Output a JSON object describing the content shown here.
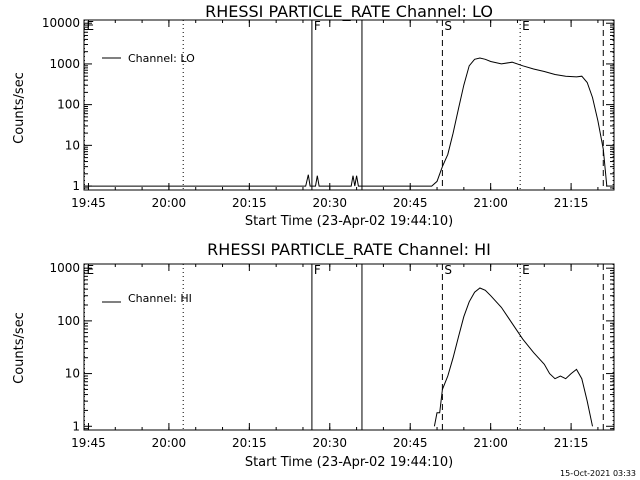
{
  "chart_data": [
    {
      "type": "line",
      "title": "RHESSI PARTICLE_RATE Channel: LO",
      "xlabel": "Start Time (23-Apr-02 19:44:10)",
      "ylabel": "Counts/sec",
      "yscale": "log",
      "xlim": [
        "19:44:10",
        "21:23:00"
      ],
      "ylim": [
        0.8,
        12000
      ],
      "xticks": [
        "19:45",
        "20:00",
        "20:15",
        "20:30",
        "20:45",
        "21:00",
        "21:15"
      ],
      "yticks": [
        "1",
        "10",
        "100",
        "1000",
        "10000"
      ],
      "legend": {
        "position": "top-left",
        "label": "Channel: LO"
      },
      "vlines": [
        {
          "time": "19:44:15",
          "style": "dotted",
          "label": "E"
        },
        {
          "time": "20:02:40",
          "style": "dotted",
          "label": ""
        },
        {
          "time": "20:26:40",
          "style": "solid",
          "label": "F"
        },
        {
          "time": "20:36:00",
          "style": "solid",
          "label": ""
        },
        {
          "time": "20:51:00",
          "style": "dashed",
          "label": "S"
        },
        {
          "time": "21:05:30",
          "style": "dotted",
          "label": "E"
        },
        {
          "time": "21:21:00",
          "style": "dashed",
          "label": ""
        },
        {
          "time": "21:22:50",
          "style": "dotted",
          "label": ""
        }
      ],
      "series": [
        {
          "name": "Channel: LO",
          "points": [
            [
              "19:44:10",
              1
            ],
            [
              "20:25:30",
              1
            ],
            [
              "20:26:00",
              1.9
            ],
            [
              "20:26:20",
              1
            ],
            [
              "20:27:20",
              1
            ],
            [
              "20:27:40",
              1.8
            ],
            [
              "20:28:00",
              1
            ],
            [
              "20:34:00",
              1
            ],
            [
              "20:34:20",
              1.8
            ],
            [
              "20:34:40",
              1
            ],
            [
              "20:35:00",
              1.8
            ],
            [
              "20:35:20",
              1
            ],
            [
              "20:49:00",
              1
            ],
            [
              "20:50:00",
              1.3
            ],
            [
              "20:51:00",
              3
            ],
            [
              "20:52:00",
              6
            ],
            [
              "20:53:00",
              20
            ],
            [
              "20:54:00",
              80
            ],
            [
              "20:55:00",
              300
            ],
            [
              "20:56:00",
              900
            ],
            [
              "20:57:00",
              1300
            ],
            [
              "20:58:00",
              1400
            ],
            [
              "20:59:00",
              1300
            ],
            [
              "21:00:00",
              1150
            ],
            [
              "21:02:00",
              1000
            ],
            [
              "21:04:00",
              1100
            ],
            [
              "21:06:00",
              900
            ],
            [
              "21:08:00",
              750
            ],
            [
              "21:10:00",
              650
            ],
            [
              "21:12:00",
              550
            ],
            [
              "21:14:00",
              500
            ],
            [
              "21:16:00",
              480
            ],
            [
              "21:17:00",
              500
            ],
            [
              "21:18:00",
              350
            ],
            [
              "21:19:00",
              150
            ],
            [
              "21:20:00",
              40
            ],
            [
              "21:21:00",
              8
            ],
            [
              "21:21:40",
              1
            ]
          ]
        }
      ]
    },
    {
      "type": "line",
      "title": "RHESSI PARTICLE_RATE Channel: HI",
      "xlabel": "Start Time (23-Apr-02 19:44:10)",
      "ylabel": "Counts/sec",
      "yscale": "log",
      "xlim": [
        "19:44:10",
        "21:23:00"
      ],
      "ylim": [
        0.85,
        1200
      ],
      "xticks": [
        "19:45",
        "20:00",
        "20:15",
        "20:30",
        "20:45",
        "21:00",
        "21:15"
      ],
      "yticks": [
        "1",
        "10",
        "100",
        "1000"
      ],
      "legend": {
        "position": "top-left",
        "label": "Channel: HI"
      },
      "vlines": [
        {
          "time": "19:44:15",
          "style": "dotted",
          "label": "E"
        },
        {
          "time": "20:02:40",
          "style": "dotted",
          "label": ""
        },
        {
          "time": "20:26:40",
          "style": "solid",
          "label": "F"
        },
        {
          "time": "20:36:00",
          "style": "solid",
          "label": ""
        },
        {
          "time": "20:51:00",
          "style": "dashed",
          "label": "S"
        },
        {
          "time": "21:05:30",
          "style": "dotted",
          "label": "E"
        },
        {
          "time": "21:21:00",
          "style": "dashed",
          "label": ""
        },
        {
          "time": "21:22:50",
          "style": "dotted",
          "label": ""
        }
      ],
      "series": [
        {
          "name": "Channel: HI",
          "points": [
            [
              "20:49:30",
              1
            ],
            [
              "20:50:00",
              1.8
            ],
            [
              "20:50:30",
              1.8
            ],
            [
              "20:51:00",
              5
            ],
            [
              "20:52:00",
              9
            ],
            [
              "20:53:00",
              20
            ],
            [
              "20:54:00",
              50
            ],
            [
              "20:55:00",
              120
            ],
            [
              "20:56:00",
              230
            ],
            [
              "20:57:00",
              350
            ],
            [
              "20:58:00",
              420
            ],
            [
              "20:59:00",
              380
            ],
            [
              "21:00:00",
              300
            ],
            [
              "21:02:00",
              180
            ],
            [
              "21:04:00",
              90
            ],
            [
              "21:06:00",
              45
            ],
            [
              "21:08:00",
              25
            ],
            [
              "21:10:00",
              15
            ],
            [
              "21:11:00",
              10
            ],
            [
              "21:12:00",
              8
            ],
            [
              "21:13:00",
              9
            ],
            [
              "21:14:00",
              8
            ],
            [
              "21:15:00",
              10
            ],
            [
              "21:16:00",
              12
            ],
            [
              "21:17:00",
              8
            ],
            [
              "21:18:00",
              3
            ],
            [
              "21:19:00",
              1
            ]
          ]
        }
      ]
    }
  ],
  "timestamp": "15-Oct-2021 03:33"
}
